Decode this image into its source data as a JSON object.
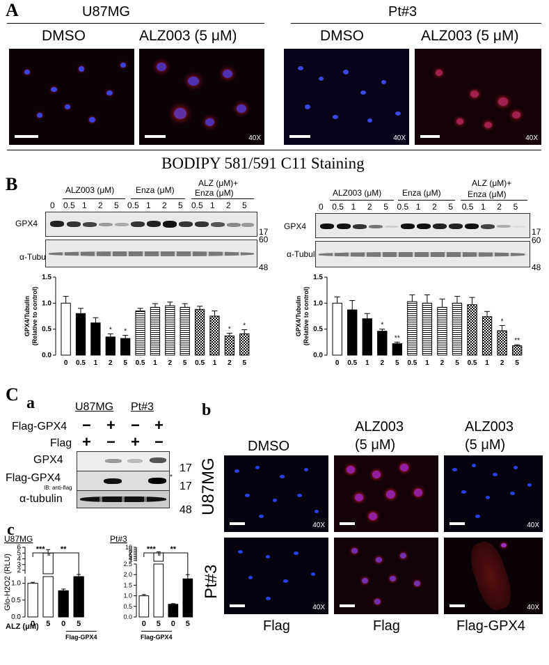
{
  "panelA": {
    "letter": "A",
    "groups": [
      {
        "name": "U87MG",
        "cols": [
          "DMSO",
          "ALZ003 (5 μM)"
        ]
      },
      {
        "name": "Pt#3",
        "cols": [
          "DMSO",
          "ALZ003 (5 μM)"
        ]
      }
    ],
    "magnification": "40X",
    "caption": "BODIPY 581/591 C11 Staining"
  },
  "panelB": {
    "letter": "B",
    "treatments": [
      "ALZ003 (μM)",
      "Enza (μM)",
      "ALZ (μM)+",
      "Enza (μM)"
    ],
    "lanes": [
      "0",
      "0.5",
      "1",
      "2",
      "5",
      "0.5",
      "1",
      "2",
      "5",
      "0.5",
      "1",
      "2",
      "5"
    ],
    "row_labels": [
      "GPX4",
      "α-Tubulin"
    ],
    "mw_markers": [
      "17",
      "60",
      "48"
    ],
    "ylabel_line1": "GPX4/Tubulin",
    "ylabel_line2": "(Relative to control)",
    "yticks": [
      "0.0",
      "0.5",
      "1.0",
      "1.5"
    ]
  },
  "chart_data": [
    {
      "type": "bar",
      "categories": [
        "0",
        "0.5",
        "1",
        "2",
        "5",
        "0.5",
        "1",
        "2",
        "5",
        "0.5",
        "1",
        "2",
        "5"
      ],
      "values": [
        1.0,
        0.8,
        0.62,
        0.35,
        0.32,
        0.85,
        0.92,
        0.95,
        0.92,
        0.88,
        0.75,
        0.37,
        0.41
      ],
      "errors": [
        0.13,
        0.1,
        0.1,
        0.06,
        0.06,
        0.05,
        0.07,
        0.07,
        0.07,
        0.06,
        0.1,
        0.05,
        0.08
      ],
      "significance": [
        "",
        "",
        "",
        "*",
        "*",
        "",
        "",
        "",
        "",
        "",
        "",
        "*",
        "*"
      ],
      "ylabel": "GPX4/Tubulin (Relative to control)",
      "ylim": [
        0,
        1.5
      ]
    },
    {
      "type": "bar",
      "categories": [
        "0",
        "0.5",
        "1",
        "2",
        "5",
        "0.5",
        "1",
        "2",
        "5",
        "0.5",
        "1",
        "2",
        "5"
      ],
      "values": [
        1.0,
        0.87,
        0.7,
        0.46,
        0.22,
        1.03,
        1.0,
        0.92,
        1.0,
        0.97,
        0.74,
        0.47,
        0.18
      ],
      "errors": [
        0.12,
        0.18,
        0.1,
        0.04,
        0.03,
        0.13,
        0.16,
        0.16,
        0.13,
        0.14,
        0.1,
        0.1,
        0.02
      ],
      "significance": [
        "",
        "",
        "",
        "*",
        "**",
        "",
        "",
        "",
        "",
        "",
        "",
        "*",
        "**"
      ],
      "ylabel": "GPX4/Tubulin (Relative to control)",
      "ylim": [
        0,
        1.5
      ]
    },
    {
      "type": "bar",
      "categories": [
        "0",
        "5",
        "0",
        "5"
      ],
      "values": [
        1.0,
        5.0,
        0.78,
        1.25
      ],
      "errors": [
        0.03,
        0.6,
        0.05,
        0.04
      ],
      "significance": [
        "",
        "***",
        "#",
        "**"
      ],
      "ylabel": "Glo-H2O2 (RLU)",
      "yticks": [
        "0.0",
        "0.5",
        "1.0",
        "2",
        "3",
        "4",
        "5",
        "6"
      ],
      "title": "U87MG"
    },
    {
      "type": "bar",
      "categories": [
        "0",
        "5",
        "0",
        "5"
      ],
      "values": [
        1.0,
        7.0,
        0.6,
        1.8
      ],
      "errors": [
        0.06,
        0.6,
        0.03,
        0.2
      ],
      "significance": [
        "",
        "***",
        "##",
        "**"
      ],
      "yticks": [
        "0.0",
        "0.5",
        "1.0",
        "1.5",
        "2.0",
        "2.5",
        "3",
        "4",
        "5",
        "6",
        "7",
        "8",
        "9",
        "10"
      ],
      "title": "Pt#3"
    }
  ],
  "panelC": {
    "letter": "C",
    "sub_a": "a",
    "sub_b": "b",
    "sub_c": "c",
    "cell_lines": [
      "U87MG",
      "Pt#3"
    ],
    "rows": [
      "Flag-GPX4",
      "Flag"
    ],
    "signs": {
      "flag_gpx4": [
        "−",
        "+",
        "−",
        "+"
      ],
      "flag": [
        "+",
        "−",
        "+",
        "−"
      ]
    },
    "blot_rows": [
      "GPX4",
      "Flag-GPX4",
      "α-tubulin"
    ],
    "ib_note": "IB: anti-flag",
    "mw": [
      "17",
      "17",
      "48"
    ],
    "star": "*",
    "alz_label": "ALZ (μM)",
    "flag_gpx4_under": "Flag-GPX4",
    "b_cols": [
      "DMSO",
      "ALZ003\n(5 μM)",
      "ALZ003\n(5 μM)"
    ],
    "b_col_line1": [
      "DMSO",
      "ALZ003",
      "ALZ003"
    ],
    "b_col_line2": [
      "",
      "(5 μM)",
      "(5 μM)"
    ],
    "b_rows": [
      "U87MG",
      "Pt#3"
    ],
    "b_bottom": [
      "Flag",
      "Flag",
      "Flag-GPX4"
    ]
  }
}
